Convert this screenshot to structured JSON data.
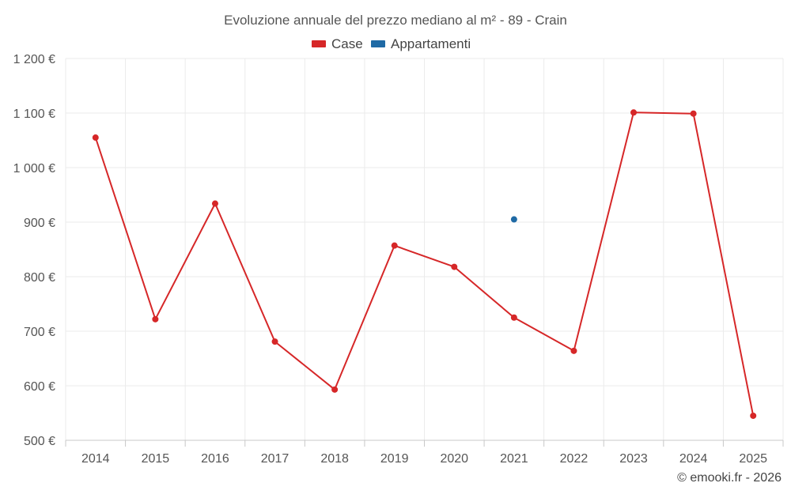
{
  "chart_data": {
    "type": "line",
    "title": "Evoluzione annuale del prezzo mediano al m² - 89 - Crain",
    "categories": [
      "2014",
      "2015",
      "2016",
      "2017",
      "2018",
      "2019",
      "2020",
      "2021",
      "2022",
      "2023",
      "2024",
      "2025"
    ],
    "series": [
      {
        "name": "Case",
        "color": "#d62728",
        "values": [
          1055,
          722,
          934,
          681,
          593,
          857,
          818,
          725,
          664,
          1101,
          1099,
          545
        ]
      },
      {
        "name": "Appartamenti",
        "color": "#1f6aa5",
        "values": [
          null,
          null,
          null,
          null,
          null,
          null,
          null,
          905,
          null,
          null,
          null,
          null
        ]
      }
    ],
    "ylim": [
      500,
      1200
    ],
    "yticks": [
      500,
      600,
      700,
      800,
      900,
      1000,
      1100,
      1200
    ],
    "ytick_labels": [
      "500 €",
      "600 €",
      "700 €",
      "800 €",
      "900 €",
      "1 000 €",
      "1 100 €",
      "1 200 €"
    ],
    "grid": true,
    "legend": "top-center",
    "credit": "© emooki.fr - 2026"
  }
}
